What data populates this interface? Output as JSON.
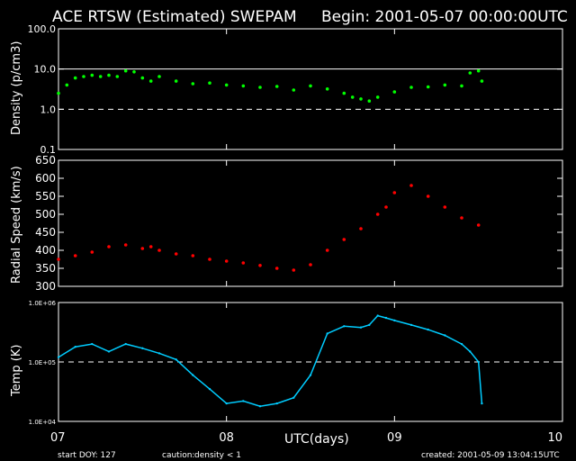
{
  "header": {
    "title": "ACE RTSW (Estimated) SWEPAM",
    "begin": "Begin: 2001-05-07 00:00:00UTC"
  },
  "footer": {
    "start_doy": "start DOY: 127",
    "caution_label": "caution:",
    "caution_value": "density < 1",
    "created": "created: 2001-05-09 13:04:15UTC"
  },
  "colors": {
    "density": "#00ff00",
    "speed": "#ff0000",
    "temp": "#00ccff",
    "caution": "#ffff00",
    "axes": "#ffffff"
  },
  "chart_data": [
    {
      "type": "scatter",
      "panel": "density",
      "ylabel": "Density (p/cm3)",
      "yscale": "log",
      "ylim": [
        0.1,
        100
      ],
      "yticks": [
        "100.0",
        "10.0",
        "1.0",
        "0.1"
      ],
      "reference_lines": [
        {
          "y": 10,
          "style": "solid"
        },
        {
          "y": 1,
          "style": "dashed"
        }
      ],
      "x": [
        0,
        0.05,
        0.1,
        0.15,
        0.2,
        0.25,
        0.3,
        0.35,
        0.4,
        0.45,
        0.5,
        0.55,
        0.6,
        0.7,
        0.8,
        0.9,
        1.0,
        1.1,
        1.2,
        1.3,
        1.4,
        1.5,
        1.6,
        1.7,
        1.75,
        1.8,
        1.85,
        1.9,
        2.0,
        2.1,
        2.2,
        2.3,
        2.4,
        2.45,
        2.5,
        2.52
      ],
      "y": [
        2.5,
        4,
        6,
        6.5,
        7,
        6.5,
        7,
        6.5,
        9,
        8.5,
        6,
        5,
        6.5,
        5,
        4.3,
        4.5,
        4,
        3.8,
        3.5,
        3.7,
        3,
        3.8,
        3.2,
        2.5,
        2,
        1.8,
        1.6,
        2,
        2.7,
        3.5,
        3.6,
        4,
        3.8,
        8,
        9,
        5
      ]
    },
    {
      "type": "scatter",
      "panel": "speed",
      "ylabel": "Radial Speed (km/s)",
      "ylim": [
        300,
        650
      ],
      "yticks": [
        "650",
        "600",
        "550",
        "500",
        "450",
        "400",
        "350",
        "300"
      ],
      "x": [
        0,
        0.1,
        0.2,
        0.3,
        0.4,
        0.5,
        0.55,
        0.6,
        0.7,
        0.8,
        0.9,
        1.0,
        1.1,
        1.2,
        1.3,
        1.4,
        1.5,
        1.6,
        1.7,
        1.8,
        1.9,
        1.95,
        2.0,
        2.1,
        2.2,
        2.3,
        2.4,
        2.5
      ],
      "y": [
        375,
        385,
        395,
        410,
        415,
        405,
        410,
        400,
        390,
        385,
        375,
        370,
        365,
        358,
        350,
        345,
        360,
        400,
        430,
        460,
        500,
        520,
        560,
        580,
        550,
        520,
        490,
        470
      ]
    },
    {
      "type": "line",
      "panel": "temp",
      "ylabel": "Temp (K)",
      "yscale": "log",
      "ylim": [
        10000,
        1000000
      ],
      "yticks": [
        "1.0E+06",
        "1.0E+05",
        "1.0E+04"
      ],
      "reference_lines": [
        {
          "y": 100000,
          "style": "dashed"
        }
      ],
      "x": [
        0,
        0.1,
        0.2,
        0.3,
        0.4,
        0.5,
        0.6,
        0.7,
        0.8,
        0.9,
        1.0,
        1.1,
        1.2,
        1.3,
        1.4,
        1.5,
        1.6,
        1.7,
        1.8,
        1.85,
        1.9,
        1.95,
        2.0,
        2.1,
        2.2,
        2.3,
        2.4,
        2.45,
        2.5,
        2.52
      ],
      "y": [
        120000,
        180000,
        200000,
        150000,
        200000,
        170000,
        140000,
        110000,
        60000,
        35000,
        20000,
        22000,
        18000,
        20000,
        25000,
        60000,
        300000,
        400000,
        380000,
        420000,
        600000,
        550000,
        500000,
        420000,
        350000,
        280000,
        200000,
        150000,
        100000,
        20000
      ]
    }
  ],
  "x_axis": {
    "label": "UTC(days)",
    "ticks": [
      "07",
      "08",
      "09",
      "10"
    ],
    "range": [
      0,
      3
    ]
  }
}
